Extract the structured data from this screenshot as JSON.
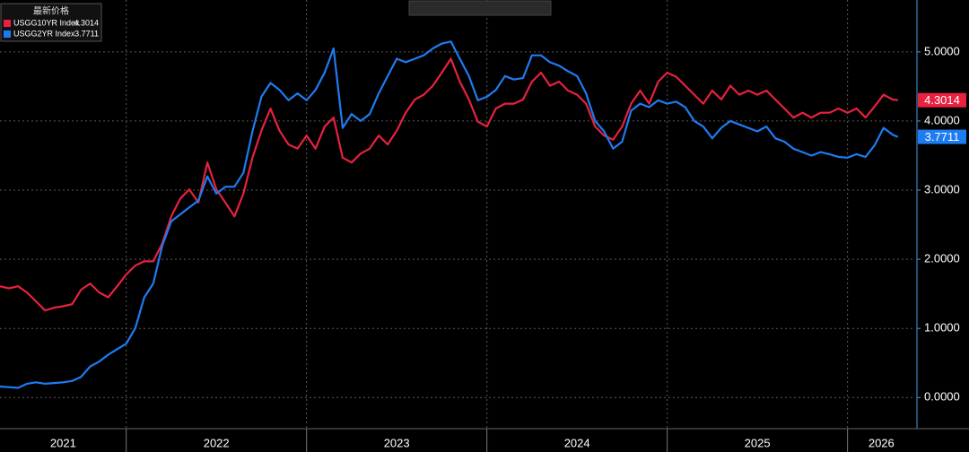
{
  "chart_data": {
    "type": "line",
    "legend_title": "最新价格",
    "x": [
      2021.3,
      2021.35,
      2021.4,
      2021.45,
      2021.5,
      2021.55,
      2021.6,
      2021.65,
      2021.7,
      2021.75,
      2021.8,
      2021.85,
      2021.9,
      2021.95,
      2022.0,
      2022.05,
      2022.1,
      2022.15,
      2022.2,
      2022.25,
      2022.3,
      2022.35,
      2022.4,
      2022.45,
      2022.5,
      2022.55,
      2022.6,
      2022.65,
      2022.7,
      2022.75,
      2022.8,
      2022.85,
      2022.9,
      2022.95,
      2023.0,
      2023.05,
      2023.1,
      2023.15,
      2023.2,
      2023.25,
      2023.3,
      2023.35,
      2023.4,
      2023.45,
      2023.5,
      2023.55,
      2023.6,
      2023.65,
      2023.7,
      2023.75,
      2023.8,
      2023.85,
      2023.9,
      2023.95,
      2024.0,
      2024.05,
      2024.1,
      2024.15,
      2024.2,
      2024.25,
      2024.3,
      2024.35,
      2024.4,
      2024.45,
      2024.5,
      2024.55,
      2024.6,
      2024.65,
      2024.7,
      2024.75,
      2024.8,
      2024.85,
      2024.9,
      2024.95,
      2025.0,
      2025.05,
      2025.1,
      2025.15,
      2025.2,
      2025.25,
      2025.3,
      2025.35,
      2025.4,
      2025.45,
      2025.5,
      2025.55,
      2025.6,
      2025.65,
      2025.7,
      2025.75,
      2025.8,
      2025.85,
      2025.9,
      2025.95,
      2026.0,
      2026.05,
      2026.1,
      2026.15,
      2026.2,
      2026.25,
      2026.28
    ],
    "series": [
      {
        "name": "USGG10YR Index",
        "color": "#e8213f",
        "values": [
          1.61,
          1.58,
          1.61,
          1.52,
          1.39,
          1.26,
          1.3,
          1.32,
          1.35,
          1.56,
          1.65,
          1.52,
          1.45,
          1.61,
          1.78,
          1.91,
          1.97,
          1.97,
          2.23,
          2.62,
          2.88,
          3.01,
          2.82,
          3.4,
          3.01,
          2.82,
          2.62,
          2.95,
          3.47,
          3.86,
          4.18,
          3.86,
          3.66,
          3.6,
          3.79,
          3.6,
          3.92,
          4.05,
          3.47,
          3.4,
          3.53,
          3.6,
          3.79,
          3.66,
          3.86,
          4.12,
          4.31,
          4.38,
          4.51,
          4.7,
          4.9,
          4.57,
          4.31,
          3.99,
          3.92,
          4.18,
          4.25,
          4.25,
          4.31,
          4.57,
          4.7,
          4.51,
          4.57,
          4.44,
          4.38,
          4.25,
          3.92,
          3.79,
          3.73,
          3.92,
          4.25,
          4.44,
          4.25,
          4.57,
          4.7,
          4.64,
          4.51,
          4.38,
          4.25,
          4.44,
          4.31,
          4.51,
          4.38,
          4.44,
          4.38,
          4.44,
          4.31,
          4.18,
          4.05,
          4.12,
          4.05,
          4.12,
          4.12,
          4.18,
          4.12,
          4.18,
          4.05,
          4.21,
          4.38,
          4.31,
          4.3014
        ]
      },
      {
        "name": "USGG2YR Index",
        "color": "#1e7cf2",
        "values": [
          0.16,
          0.15,
          0.14,
          0.2,
          0.22,
          0.2,
          0.21,
          0.22,
          0.24,
          0.3,
          0.45,
          0.52,
          0.62,
          0.7,
          0.78,
          1.0,
          1.45,
          1.65,
          2.2,
          2.55,
          2.65,
          2.75,
          2.85,
          3.2,
          2.95,
          3.05,
          3.05,
          3.25,
          3.85,
          4.35,
          4.55,
          4.45,
          4.3,
          4.4,
          4.3,
          4.45,
          4.7,
          5.05,
          3.9,
          4.1,
          4.0,
          4.1,
          4.4,
          4.65,
          4.9,
          4.85,
          4.9,
          4.95,
          5.05,
          5.12,
          5.15,
          4.9,
          4.65,
          4.3,
          4.35,
          4.45,
          4.65,
          4.6,
          4.62,
          4.95,
          4.95,
          4.85,
          4.8,
          4.72,
          4.65,
          4.4,
          4.0,
          3.85,
          3.6,
          3.7,
          4.15,
          4.25,
          4.2,
          4.3,
          4.25,
          4.28,
          4.2,
          4.0,
          3.92,
          3.75,
          3.9,
          4.0,
          3.95,
          3.9,
          3.85,
          3.92,
          3.75,
          3.7,
          3.6,
          3.55,
          3.5,
          3.55,
          3.52,
          3.48,
          3.47,
          3.52,
          3.48,
          3.65,
          3.9,
          3.8,
          3.7711
        ]
      }
    ],
    "xlim": [
      2021.3,
      2026.375
    ],
    "xticks": [
      2021,
      2022,
      2023,
      2024,
      2025,
      2026
    ],
    "ylim": [
      -0.45,
      5.75
    ],
    "yticks": [
      {
        "value": 0,
        "label": "0.0000"
      },
      {
        "value": 1,
        "label": "1.0000"
      },
      {
        "value": 2,
        "label": "2.0000"
      },
      {
        "value": 3,
        "label": "3.0000"
      },
      {
        "value": 4,
        "label": "4.0000"
      },
      {
        "value": 5,
        "label": "5.0000"
      }
    ],
    "grid": true
  }
}
